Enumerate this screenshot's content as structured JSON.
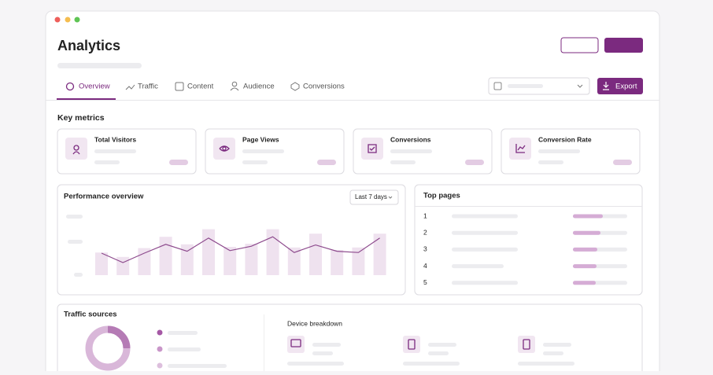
{
  "header": {
    "title": "Analytics"
  },
  "tabs": [
    "Overview",
    "Traffic",
    "Content",
    "Audience",
    "Conversions"
  ],
  "export_button": "Export",
  "key_metrics": {
    "heading": "Key metrics",
    "cards": [
      "Total Visitors",
      "Page Views",
      "Conversions",
      "Conversion Rate"
    ]
  },
  "performance": {
    "title": "Performance overview",
    "range": "Last 7 days",
    "bars": [
      36,
      29,
      43,
      61,
      49,
      73,
      45,
      50,
      73,
      44,
      66,
      40,
      44,
      66
    ],
    "line": [
      35,
      20,
      35,
      49,
      38,
      59,
      39,
      46,
      61,
      36,
      48,
      38,
      36,
      59
    ]
  },
  "top_pages": {
    "title": "Top pages",
    "ranks": [
      1,
      2,
      3,
      4,
      5
    ]
  },
  "traffic_sources": {
    "title": "Traffic sources",
    "device_heading": "Device breakdown"
  }
}
